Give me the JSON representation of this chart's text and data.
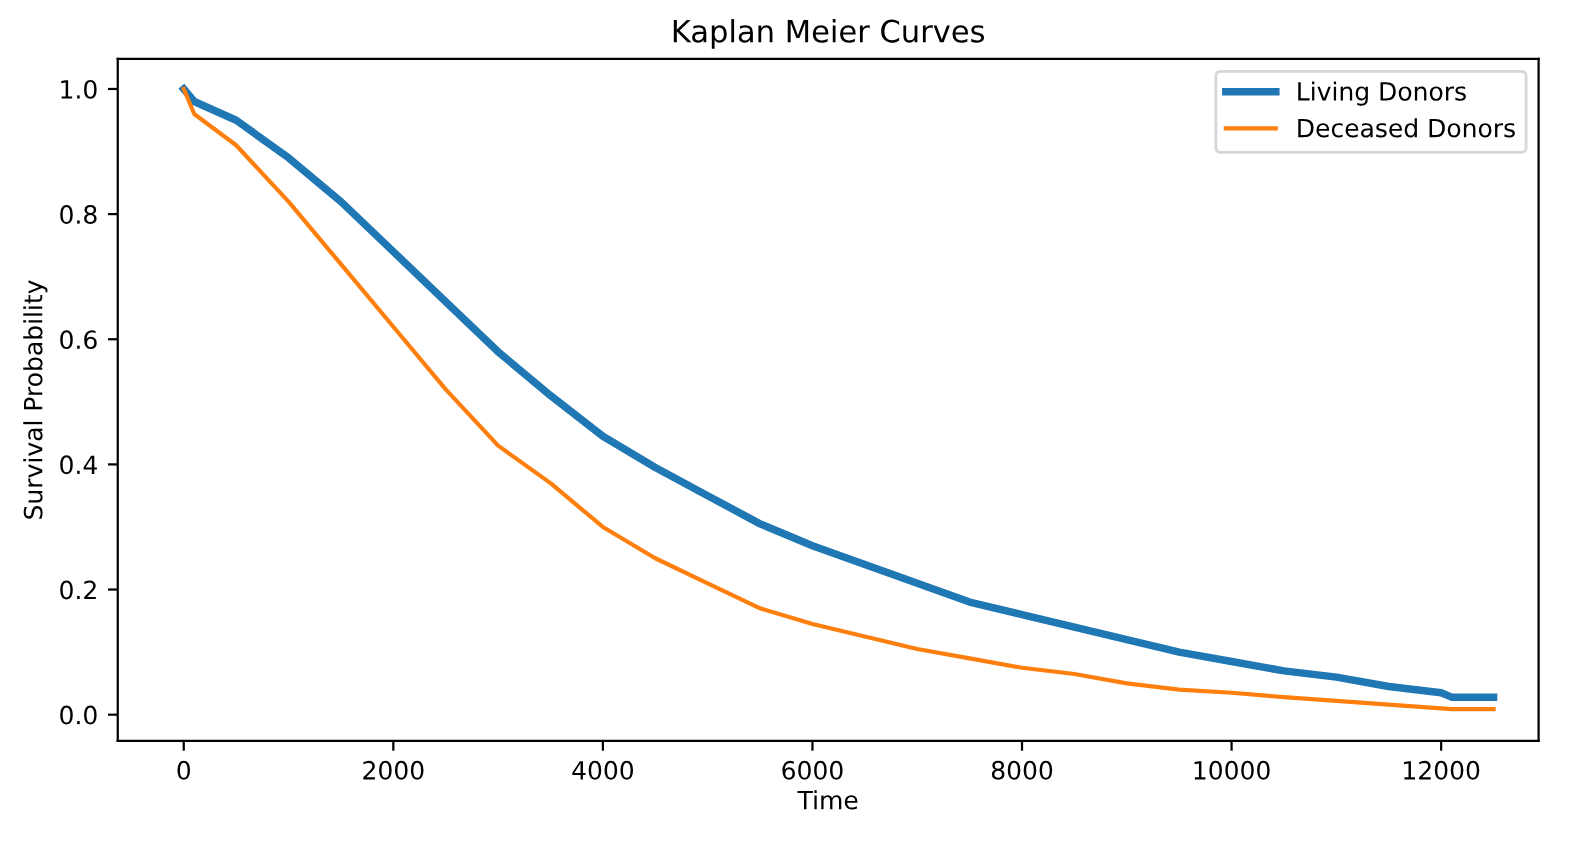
{
  "chart_data": {
    "type": "line",
    "title": "Kaplan Meier Curves",
    "xlabel": "Time",
    "ylabel": "Survival Probability",
    "x": [
      0,
      100,
      500,
      1000,
      1500,
      2000,
      2500,
      3000,
      3500,
      4000,
      4500,
      5000,
      5500,
      6000,
      6500,
      7000,
      7500,
      8000,
      8500,
      9000,
      9500,
      10000,
      10500,
      11000,
      11500,
      12000,
      12100,
      12500
    ],
    "series": [
      {
        "name": "Living Donors",
        "color": "#1f77b4",
        "values": [
          1.0,
          0.98,
          0.95,
          0.89,
          0.82,
          0.74,
          0.66,
          0.58,
          0.51,
          0.445,
          0.395,
          0.35,
          0.305,
          0.27,
          0.24,
          0.21,
          0.18,
          0.16,
          0.14,
          0.12,
          0.1,
          0.085,
          0.07,
          0.06,
          0.045,
          0.035,
          0.028,
          0.028
        ]
      },
      {
        "name": "Deceased Donors",
        "color": "#ff7f0e",
        "values": [
          1.0,
          0.96,
          0.91,
          0.82,
          0.72,
          0.62,
          0.52,
          0.43,
          0.37,
          0.3,
          0.25,
          0.21,
          0.17,
          0.145,
          0.125,
          0.105,
          0.09,
          0.075,
          0.065,
          0.05,
          0.04,
          0.035,
          0.028,
          0.022,
          0.016,
          0.01,
          0.009,
          0.009
        ]
      }
    ],
    "xlim": [
      -630,
      12930
    ],
    "ylim": [
      -0.042,
      1.048
    ],
    "xticks": [
      0,
      2000,
      4000,
      6000,
      8000,
      10000,
      12000
    ],
    "yticks": [
      {
        "value": 0,
        "label": "0.0"
      },
      {
        "value": 0.2,
        "label": "0.2"
      },
      {
        "value": 0.4,
        "label": "0.4"
      },
      {
        "value": 0.6,
        "label": "0.6"
      },
      {
        "value": 0.8,
        "label": "0.8"
      },
      {
        "value": 1.0,
        "label": "1.0"
      }
    ],
    "grid": false,
    "legend": "top right"
  }
}
